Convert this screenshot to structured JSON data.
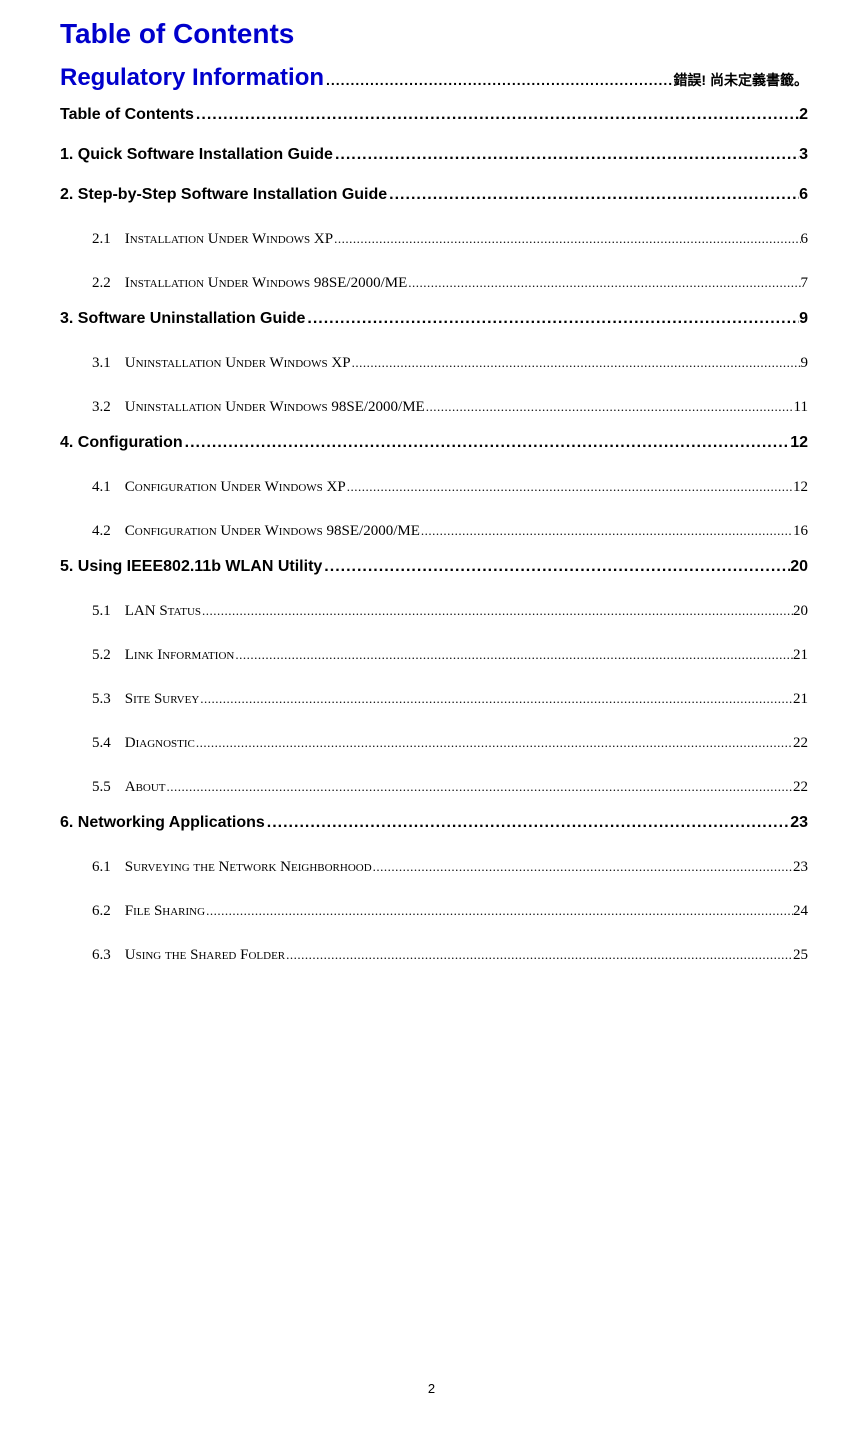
{
  "title": "Table of Contents",
  "entries": [
    {
      "level": 0,
      "label": "Regulatory Information",
      "page": "錯誤! 尚未定義書籤。"
    },
    {
      "level": 1,
      "label": "Table of Contents",
      "page": "2"
    },
    {
      "level": 1,
      "label": "1. Quick Software Installation Guide",
      "page": "3"
    },
    {
      "level": 1,
      "label": "2. Step-by-Step Software Installation Guide",
      "page": "6"
    },
    {
      "level": 2,
      "num": "2.1",
      "text": "Installation Under Windows XP",
      "page": "6"
    },
    {
      "level": 2,
      "num": "2.2",
      "text": "Installation Under Windows 98SE/2000/ME",
      "page": "7"
    },
    {
      "level": 1,
      "label": "3. Software Uninstallation Guide",
      "page": "9"
    },
    {
      "level": 2,
      "num": "3.1",
      "text": "Uninstallation Under Windows XP",
      "page": "9"
    },
    {
      "level": 2,
      "num": "3.2",
      "text": "Uninstallation Under Windows 98SE/2000/ME",
      "page": "11"
    },
    {
      "level": 1,
      "label": "4. Configuration",
      "page": "12"
    },
    {
      "level": 2,
      "num": "4.1",
      "text": "Configuration Under Windows XP",
      "page": "12"
    },
    {
      "level": 2,
      "num": "4.2",
      "text": "Configuration Under Windows 98SE/2000/ME",
      "page": "16"
    },
    {
      "level": 1,
      "label": "5. Using IEEE802.11b WLAN Utility",
      "page": "20"
    },
    {
      "level": 2,
      "num": "5.1",
      "text": "LAN  Status",
      "page": "20"
    },
    {
      "level": 2,
      "num": "5.2",
      "text": "Link Information",
      "page": "21"
    },
    {
      "level": 2,
      "num": "5.3",
      "text": "Site Survey",
      "page": "21"
    },
    {
      "level": 2,
      "num": "5.4",
      "text": "Diagnostic",
      "page": "22"
    },
    {
      "level": 2,
      "num": "5.5",
      "text": "About",
      "page": "22"
    },
    {
      "level": 1,
      "label": "6. Networking Applications",
      "page": "23"
    },
    {
      "level": 2,
      "num": "6.1",
      "text": "Surveying the Network Neighborhood",
      "page": "23"
    },
    {
      "level": 2,
      "num": "6.2",
      "text": "File Sharing",
      "page": "24"
    },
    {
      "level": 2,
      "num": "6.3",
      "text": "Using the Shared Folder",
      "page": "25"
    }
  ],
  "pageNumber": "2",
  "colors": {
    "heading": "#0000cc",
    "text": "#000000",
    "background": "#ffffff"
  }
}
